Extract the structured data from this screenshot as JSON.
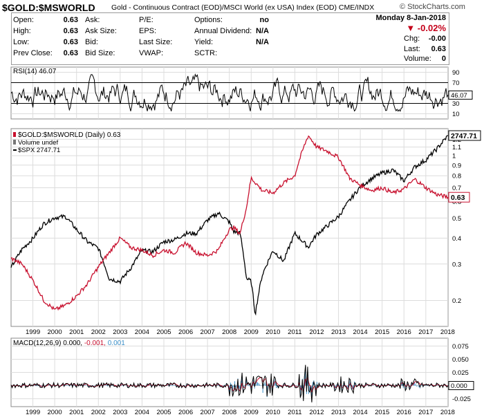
{
  "header": {
    "symbol": "$GOLD:$MSWORLD",
    "description": "Gold - Continuous Contract (EOD)/MSCI World (ex USA) Index (EOD) CME/INDX",
    "brand": "© StockCharts.com"
  },
  "quote": {
    "date": "Monday  8-Jan-2018",
    "open_label": "Open:",
    "open": "0.63",
    "high_label": "High:",
    "high": "0.63",
    "low_label": "Low:",
    "low": "0.63",
    "prev_close_label": "Prev Close:",
    "prev_close": "0.63",
    "ask_label": "Ask:",
    "ask": "",
    "ask_size_label": "Ask Size:",
    "ask_size": "",
    "bid_label": "Bid:",
    "bid": "",
    "bid_size_label": "Bid Size:",
    "bid_size": "",
    "pe_label": "P/E:",
    "pe": "",
    "eps_label": "EPS:",
    "eps": "",
    "last_size_label": "Last Size:",
    "last_size": "",
    "vwap_label": "VWAP:",
    "vwap": "",
    "options_label": "Options:",
    "options": "no",
    "dividend_label": "Annual Dividend:",
    "dividend": "N/A",
    "yield_label": "Yield:",
    "yield": "N/A",
    "sctr_label": "SCTR:",
    "sctr": "",
    "change_pct": "▼ -0.02%",
    "chg_label": "Chg:",
    "chg": "-0.00",
    "last_label": "Last:",
    "last": "0.63",
    "volume_label": "Volume:",
    "volume": "0"
  },
  "colors": {
    "ratio": "#c8102e",
    "spx": "#000000",
    "rsi": "#000000",
    "macd": "#000000",
    "signal": "#c8102e",
    "histogram": "#3a8fc8",
    "grid": "#dcdcdc",
    "band": "#000000"
  },
  "chart_data": [
    {
      "type": "line",
      "panel": "rsi",
      "legend": "RSI(14) 46.07",
      "y_ticks": [
        10,
        30,
        50,
        70,
        90
      ],
      "ylim": [
        0,
        100
      ],
      "bands": [
        30,
        70
      ],
      "last_value_label": "46.07",
      "grid": true,
      "series": [
        {
          "name": "RSI(14)",
          "x": [
            "1998-01-01",
            "2018-01-08"
          ],
          "values": [
            50,
            46.07
          ],
          "range_low": 15,
          "range_high": 88
        }
      ]
    },
    {
      "type": "line",
      "panel": "price",
      "scale": "log",
      "legend": [
        "$GOLD:$MSWORLD (Daily) 0.63",
        "Volume undef",
        "$SPX 2747.71"
      ],
      "y_ticks": [
        0.2,
        0.3,
        0.4,
        0.5,
        0.6,
        0.7,
        0.8,
        0.9,
        1.0,
        1.1,
        1.2
      ],
      "ylim": [
        0.15,
        1.35
      ],
      "x_ticks": [
        "1999",
        "2000",
        "2001",
        "2002",
        "2003",
        "2004",
        "2005",
        "2006",
        "2007",
        "2008",
        "2009",
        "2010",
        "2011",
        "2012",
        "2013",
        "2014",
        "2015",
        "2016",
        "2017",
        "2018"
      ],
      "last_value_labels": [
        "2747.71",
        "0.63"
      ],
      "grid": true,
      "series": [
        {
          "name": "$GOLD:$MSWORLD (Daily)",
          "x": [
            "1998-01-01",
            "1998-07-01",
            "1999-01-01",
            "1999-07-01",
            "2000-01-01",
            "2000-07-01",
            "2001-01-01",
            "2001-07-01",
            "2002-01-01",
            "2002-07-01",
            "2003-01-01",
            "2003-07-01",
            "2004-01-01",
            "2004-07-01",
            "2005-01-01",
            "2005-07-01",
            "2006-01-01",
            "2006-07-01",
            "2007-01-01",
            "2007-07-01",
            "2008-01-01",
            "2008-03-15",
            "2008-07-01",
            "2008-10-15",
            "2009-01-01",
            "2009-07-01",
            "2010-01-01",
            "2010-07-01",
            "2011-01-01",
            "2011-08-15",
            "2012-01-01",
            "2012-07-01",
            "2013-01-01",
            "2013-07-01",
            "2014-01-01",
            "2014-07-01",
            "2015-01-01",
            "2015-07-01",
            "2016-01-01",
            "2016-07-01",
            "2017-01-01",
            "2017-07-01",
            "2018-01-08"
          ],
          "values": [
            0.32,
            0.3,
            0.25,
            0.2,
            0.18,
            0.19,
            0.21,
            0.24,
            0.29,
            0.34,
            0.4,
            0.36,
            0.35,
            0.33,
            0.35,
            0.34,
            0.38,
            0.34,
            0.33,
            0.35,
            0.44,
            0.45,
            0.42,
            0.56,
            0.78,
            0.68,
            0.66,
            0.74,
            0.8,
            1.25,
            1.1,
            1.05,
            0.98,
            0.78,
            0.72,
            0.68,
            0.7,
            0.66,
            0.69,
            0.77,
            0.7,
            0.65,
            0.63
          ]
        },
        {
          "name": "$SPX",
          "x": [
            "1998-01-01",
            "1998-07-01",
            "1999-01-01",
            "1999-07-01",
            "2000-01-01",
            "2000-07-01",
            "2001-01-01",
            "2001-07-01",
            "2002-01-01",
            "2002-07-01",
            "2003-01-01",
            "2003-07-01",
            "2004-01-01",
            "2004-07-01",
            "2005-01-01",
            "2005-07-01",
            "2006-01-01",
            "2006-07-01",
            "2007-01-01",
            "2007-07-01",
            "2008-01-01",
            "2008-03-15",
            "2008-07-01",
            "2008-10-15",
            "2009-01-01",
            "2009-03-09",
            "2009-07-01",
            "2010-01-01",
            "2010-07-01",
            "2011-01-01",
            "2011-08-15",
            "2012-01-01",
            "2012-07-01",
            "2013-01-01",
            "2013-07-01",
            "2014-01-01",
            "2014-07-01",
            "2015-01-01",
            "2015-07-01",
            "2016-01-01",
            "2016-07-01",
            "2017-01-01",
            "2017-07-01",
            "2018-01-08"
          ],
          "values": [
            980,
            1130,
            1230,
            1380,
            1450,
            1460,
            1320,
            1200,
            1140,
            900,
            880,
            980,
            1120,
            1110,
            1200,
            1220,
            1280,
            1280,
            1420,
            1500,
            1400,
            1300,
            1280,
            900,
            880,
            680,
            920,
            1120,
            1030,
            1280,
            1150,
            1270,
            1360,
            1460,
            1650,
            1840,
            1960,
            2050,
            2100,
            1930,
            2150,
            2270,
            2470,
            2747.71
          ]
        }
      ]
    },
    {
      "type": "line",
      "panel": "macd",
      "legend": "MACD(12,26,9) 0.000, -0.001, 0.001",
      "y_ticks": [
        0.075,
        0.05,
        0.025,
        0.0,
        -0.025
      ],
      "ylim": [
        -0.04,
        0.09
      ],
      "last_value_label": "0.000",
      "x_ticks": [
        "1999",
        "2000",
        "2001",
        "2002",
        "2003",
        "2004",
        "2005",
        "2006",
        "2007",
        "2008",
        "2009",
        "2010",
        "2011",
        "2012",
        "2013",
        "2014",
        "2015",
        "2016",
        "2017",
        "2018"
      ],
      "grid": true,
      "series": [
        {
          "name": "MACD(12,26,9)",
          "x": [
            "2018-01-08"
          ],
          "values": [
            0.0
          ]
        },
        {
          "name": "Signal",
          "x": [
            "2018-01-08"
          ],
          "values": [
            -0.001
          ]
        },
        {
          "name": "Histogram",
          "x": [
            "2018-01-08"
          ],
          "values": [
            0.001
          ]
        }
      ]
    }
  ]
}
